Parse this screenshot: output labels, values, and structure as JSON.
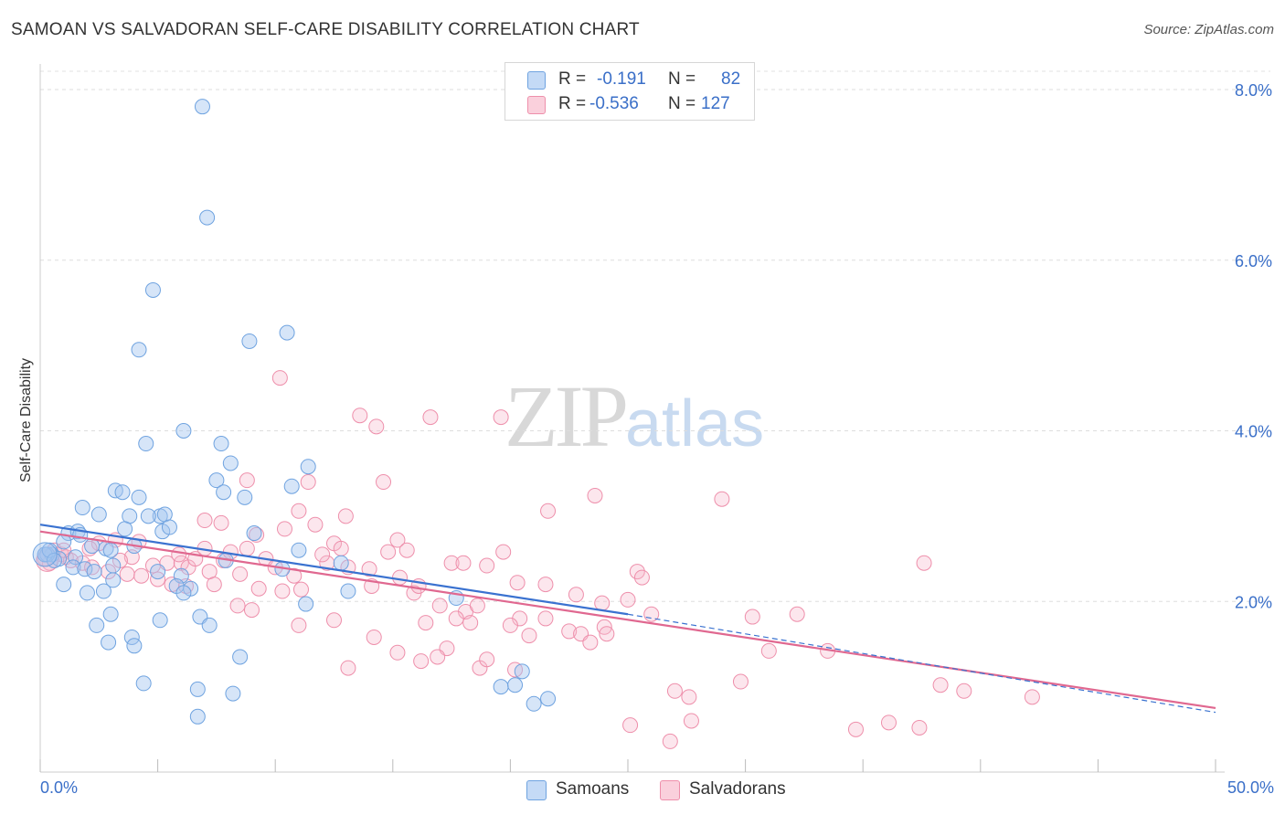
{
  "title": "SAMOAN VS SALVADORAN SELF-CARE DISABILITY CORRELATION CHART",
  "source": "Source: ZipAtlas.com",
  "watermark": {
    "zip": "ZIP",
    "atlas": "atlas"
  },
  "stats": [
    {
      "r_label": "R =",
      "r_value": "-0.191",
      "n_label": "N =",
      "n_value": "82",
      "color": "#a8c8f0"
    },
    {
      "r_label": "R =",
      "r_value": "-0.536",
      "n_label": "N =",
      "n_value": "127",
      "color": "#f5b8c8"
    }
  ],
  "legend": [
    {
      "label": "Samoans",
      "color": "#a8c8f0"
    },
    {
      "label": "Salvadorans",
      "color": "#f5b8c8"
    }
  ],
  "chart_data": {
    "type": "scatter",
    "title": "SAMOAN VS SALVADORAN SELF-CARE DISABILITY CORRELATION CHART",
    "xlabel": "",
    "ylabel": "Self-Care Disability",
    "xlim": [
      0,
      50
    ],
    "ylim": [
      0,
      8.3
    ],
    "x_tick_labels": [
      "0.0%",
      "50.0%"
    ],
    "y_ticks": [
      2.0,
      4.0,
      6.0,
      8.0
    ],
    "y_tick_labels": [
      "2.0%",
      "4.0%",
      "6.0%",
      "8.0%"
    ],
    "grid": true,
    "legend_position": "bottom",
    "colors": {
      "samoans": "#6fa3e0",
      "salvadorans": "#ee8fab",
      "samoans_line": "#3a72d0",
      "salvadorans_line": "#e06890"
    },
    "series": [
      {
        "name": "Samoans",
        "trend": {
          "x": [
            0,
            25
          ],
          "y": [
            2.9,
            1.85
          ],
          "dashed_to": [
            50,
            0.7
          ]
        },
        "points": [
          [
            6.9,
            7.8
          ],
          [
            7.1,
            6.5
          ],
          [
            4.8,
            5.65
          ],
          [
            4.2,
            4.95
          ],
          [
            8.9,
            5.05
          ],
          [
            10.5,
            5.15
          ],
          [
            6.1,
            4.0
          ],
          [
            4.5,
            3.85
          ],
          [
            7.7,
            3.85
          ],
          [
            8.1,
            3.62
          ],
          [
            11.4,
            3.58
          ],
          [
            7.5,
            3.42
          ],
          [
            10.7,
            3.35
          ],
          [
            3.2,
            3.3
          ],
          [
            3.5,
            3.28
          ],
          [
            7.8,
            3.28
          ],
          [
            8.7,
            3.22
          ],
          [
            4.2,
            3.22
          ],
          [
            1.8,
            3.1
          ],
          [
            2.5,
            3.02
          ],
          [
            3.8,
            3.0
          ],
          [
            5.1,
            3.0
          ],
          [
            5.3,
            3.02
          ],
          [
            4.6,
            3.0
          ],
          [
            3.6,
            2.85
          ],
          [
            5.2,
            2.82
          ],
          [
            5.5,
            2.87
          ],
          [
            1.2,
            2.8
          ],
          [
            1.6,
            2.82
          ],
          [
            1.7,
            2.78
          ],
          [
            9.1,
            2.8
          ],
          [
            1.0,
            2.7
          ],
          [
            2.2,
            2.65
          ],
          [
            4.0,
            2.65
          ],
          [
            2.8,
            2.62
          ],
          [
            3.0,
            2.6
          ],
          [
            11.0,
            2.6
          ],
          [
            0.2,
            2.55
          ],
          [
            0.5,
            2.55
          ],
          [
            0.8,
            2.5
          ],
          [
            0.3,
            2.55
          ],
          [
            1.5,
            2.52
          ],
          [
            7.9,
            2.48
          ],
          [
            12.8,
            2.45
          ],
          [
            1.4,
            2.4
          ],
          [
            1.9,
            2.38
          ],
          [
            2.3,
            2.35
          ],
          [
            3.1,
            2.42
          ],
          [
            10.3,
            2.38
          ],
          [
            5.0,
            2.35
          ],
          [
            6.0,
            2.3
          ],
          [
            3.1,
            2.25
          ],
          [
            1.0,
            2.2
          ],
          [
            5.8,
            2.18
          ],
          [
            6.4,
            2.15
          ],
          [
            2.7,
            2.12
          ],
          [
            2.0,
            2.1
          ],
          [
            6.1,
            2.1
          ],
          [
            13.1,
            2.12
          ],
          [
            17.7,
            2.04
          ],
          [
            11.3,
            1.97
          ],
          [
            3.0,
            1.85
          ],
          [
            6.8,
            1.82
          ],
          [
            5.1,
            1.78
          ],
          [
            7.2,
            1.72
          ],
          [
            2.4,
            1.72
          ],
          [
            3.9,
            1.58
          ],
          [
            2.9,
            1.52
          ],
          [
            4.0,
            1.48
          ],
          [
            8.5,
            1.35
          ],
          [
            20.5,
            1.18
          ],
          [
            4.4,
            1.04
          ],
          [
            6.7,
            0.97
          ],
          [
            8.2,
            0.92
          ],
          [
            19.6,
            1.0
          ],
          [
            20.2,
            1.02
          ],
          [
            21.0,
            0.8
          ],
          [
            21.6,
            0.86
          ],
          [
            6.7,
            0.65
          ],
          [
            0.2,
            2.55
          ],
          [
            0.4,
            2.6
          ],
          [
            0.6,
            2.48
          ]
        ]
      },
      {
        "name": "Salvadorans",
        "trend": {
          "x": [
            0,
            50
          ],
          "y": [
            2.82,
            0.75
          ]
        },
        "points": [
          [
            10.2,
            4.62
          ],
          [
            13.6,
            4.18
          ],
          [
            16.6,
            4.16
          ],
          [
            19.6,
            4.16
          ],
          [
            14.3,
            4.05
          ],
          [
            14.6,
            3.4
          ],
          [
            11.4,
            3.4
          ],
          [
            8.8,
            3.42
          ],
          [
            23.6,
            3.24
          ],
          [
            29.0,
            3.2
          ],
          [
            11.0,
            3.06
          ],
          [
            21.6,
            3.06
          ],
          [
            13.0,
            3.0
          ],
          [
            7.0,
            2.95
          ],
          [
            7.7,
            2.92
          ],
          [
            11.7,
            2.9
          ],
          [
            10.4,
            2.85
          ],
          [
            9.2,
            2.78
          ],
          [
            15.2,
            2.72
          ],
          [
            12.5,
            2.68
          ],
          [
            12.8,
            2.62
          ],
          [
            15.6,
            2.6
          ],
          [
            8.8,
            2.62
          ],
          [
            19.7,
            2.58
          ],
          [
            14.8,
            2.58
          ],
          [
            9.6,
            2.5
          ],
          [
            7.8,
            2.48
          ],
          [
            3.2,
            2.72
          ],
          [
            2.5,
            2.68
          ],
          [
            4.2,
            2.7
          ],
          [
            3.9,
            2.52
          ],
          [
            3.4,
            2.48
          ],
          [
            4.8,
            2.42
          ],
          [
            5.4,
            2.45
          ],
          [
            6.0,
            2.45
          ],
          [
            6.3,
            2.4
          ],
          [
            6.6,
            2.5
          ],
          [
            7.2,
            2.35
          ],
          [
            8.5,
            2.32
          ],
          [
            10.0,
            2.4
          ],
          [
            10.8,
            2.3
          ],
          [
            12.2,
            2.45
          ],
          [
            13.1,
            2.4
          ],
          [
            14.0,
            2.38
          ],
          [
            15.3,
            2.28
          ],
          [
            17.5,
            2.45
          ],
          [
            18.0,
            2.45
          ],
          [
            19.0,
            2.42
          ],
          [
            20.3,
            2.22
          ],
          [
            21.5,
            2.2
          ],
          [
            25.4,
            2.35
          ],
          [
            25.6,
            2.28
          ],
          [
            37.6,
            2.45
          ],
          [
            0.6,
            2.6
          ],
          [
            0.9,
            2.55
          ],
          [
            1.1,
            2.52
          ],
          [
            1.3,
            2.48
          ],
          [
            1.8,
            2.45
          ],
          [
            2.2,
            2.4
          ],
          [
            2.9,
            2.35
          ],
          [
            3.7,
            2.32
          ],
          [
            4.3,
            2.3
          ],
          [
            5.0,
            2.26
          ],
          [
            5.6,
            2.2
          ],
          [
            6.2,
            2.18
          ],
          [
            7.4,
            2.2
          ],
          [
            9.3,
            2.15
          ],
          [
            10.3,
            2.12
          ],
          [
            11.1,
            2.14
          ],
          [
            14.1,
            2.18
          ],
          [
            15.9,
            2.1
          ],
          [
            16.1,
            2.18
          ],
          [
            17.0,
            1.95
          ],
          [
            18.1,
            1.88
          ],
          [
            18.6,
            1.95
          ],
          [
            20.4,
            1.8
          ],
          [
            21.5,
            1.8
          ],
          [
            22.8,
            2.08
          ],
          [
            23.9,
            1.98
          ],
          [
            25.0,
            2.02
          ],
          [
            26.0,
            1.85
          ],
          [
            30.3,
            1.82
          ],
          [
            32.2,
            1.85
          ],
          [
            8.4,
            1.95
          ],
          [
            9.0,
            1.9
          ],
          [
            11.0,
            1.72
          ],
          [
            12.5,
            1.78
          ],
          [
            16.4,
            1.75
          ],
          [
            18.3,
            1.75
          ],
          [
            20.0,
            1.72
          ],
          [
            22.5,
            1.65
          ],
          [
            23.0,
            1.62
          ],
          [
            24.0,
            1.7
          ],
          [
            24.1,
            1.62
          ],
          [
            23.4,
            1.52
          ],
          [
            14.2,
            1.58
          ],
          [
            20.8,
            1.6
          ],
          [
            17.7,
            1.8
          ],
          [
            17.3,
            1.45
          ],
          [
            16.9,
            1.35
          ],
          [
            16.2,
            1.3
          ],
          [
            18.7,
            1.22
          ],
          [
            19.0,
            1.32
          ],
          [
            15.2,
            1.4
          ],
          [
            13.1,
            1.22
          ],
          [
            20.2,
            1.2
          ],
          [
            31.0,
            1.42
          ],
          [
            33.5,
            1.42
          ],
          [
            29.8,
            1.06
          ],
          [
            27.0,
            0.95
          ],
          [
            27.6,
            0.88
          ],
          [
            38.3,
            1.02
          ],
          [
            39.3,
            0.95
          ],
          [
            42.2,
            0.88
          ],
          [
            25.1,
            0.55
          ],
          [
            27.7,
            0.6
          ],
          [
            26.8,
            0.36
          ],
          [
            34.7,
            0.5
          ],
          [
            36.1,
            0.58
          ],
          [
            37.4,
            0.52
          ],
          [
            0.2,
            2.5
          ],
          [
            0.4,
            2.45
          ],
          [
            1.0,
            2.6
          ],
          [
            2.1,
            2.62
          ],
          [
            5.9,
            2.55
          ],
          [
            7.0,
            2.62
          ],
          [
            8.1,
            2.58
          ],
          [
            12.0,
            2.55
          ]
        ]
      }
    ]
  }
}
